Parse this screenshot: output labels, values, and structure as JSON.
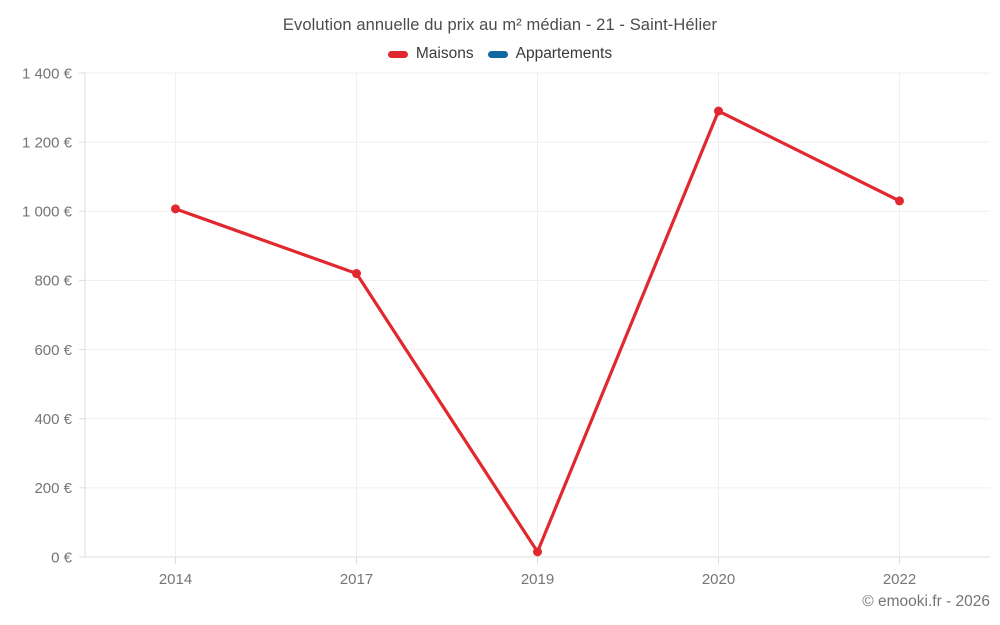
{
  "header": {
    "title": "Evolution annuelle du prix au m² médian - 21 - Saint-Hélier"
  },
  "legend": {
    "items": [
      {
        "label": "Maisons",
        "color": "#e0282e"
      },
      {
        "label": "Appartements",
        "color": "#1269a0"
      }
    ]
  },
  "footer": {
    "credit": "© emooki.fr - 2026"
  },
  "chart_data": {
    "type": "line",
    "title": "Evolution annuelle du prix au m² médian - 21 - Saint-Hélier",
    "categories": [
      "2014",
      "2017",
      "2019",
      "2020",
      "2022"
    ],
    "series": [
      {
        "name": "Maisons",
        "color": "#e0282e",
        "values": [
          1007,
          820,
          15,
          1290,
          1030
        ]
      },
      {
        "name": "Appartements",
        "color": "#1269a0",
        "values": []
      }
    ],
    "xlabel": "",
    "ylabel": "",
    "ylim": [
      0,
      1400
    ],
    "ytick_step": 200,
    "ytick_labels": [
      "0 €",
      "200 €",
      "400 €",
      "600 €",
      "800 €",
      "1 000 €",
      "1 200 €",
      "1 400 €"
    ],
    "grid": true,
    "legend_position": "top",
    "point_style": "circle"
  },
  "colors": {
    "background": "#ffffff",
    "grid": "#efefef",
    "axis": "#dedede",
    "tick": "#dedede",
    "tick_label": "#757575",
    "title": "#4c4c4c",
    "legend_label": "#3a3a3a",
    "footer": "#757575",
    "maisons": "#e0282e",
    "appartements": "#1269a0"
  }
}
